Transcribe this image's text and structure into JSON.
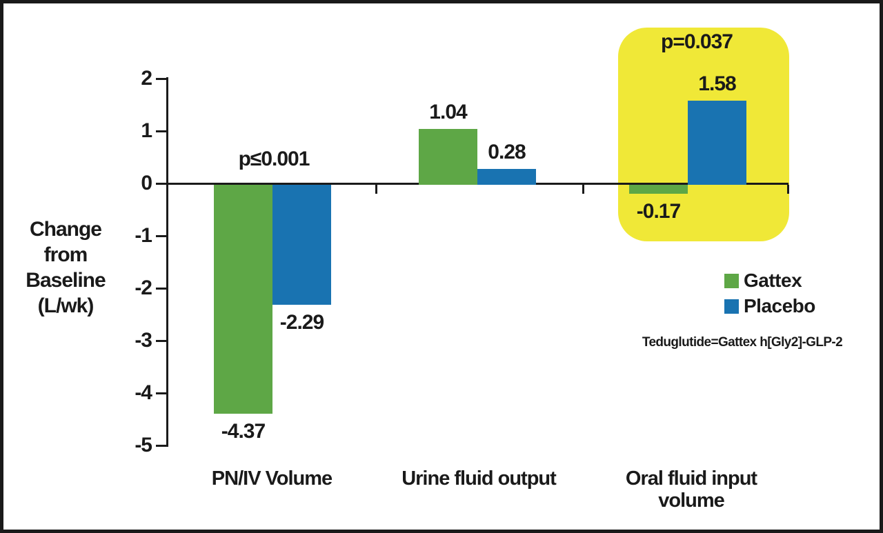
{
  "chart_data": {
    "type": "bar",
    "title": "",
    "categories": [
      "PN/IV Volume",
      "Urine fluid output",
      "Oral fluid input volume"
    ],
    "series": [
      {
        "name": "Gattex",
        "color": "#5EA746",
        "values": [
          -4.37,
          1.04,
          -0.17
        ],
        "value_labels": [
          "-4.37",
          "1.04",
          "-0.17"
        ]
      },
      {
        "name": "Placebo",
        "color": "#1973B1",
        "values": [
          -2.29,
          0.28,
          1.58
        ],
        "value_labels": [
          "-2.29",
          "0.28",
          "1.58"
        ]
      }
    ],
    "xlabel": "",
    "ylabel": "Change from Baseline (L/wk)",
    "ylabel_lines": [
      "Change",
      "from",
      "Baseline",
      "(L/wk)"
    ],
    "ylim": [
      -5,
      2
    ],
    "yticks": [
      2,
      1,
      0,
      -1,
      -2,
      -3,
      -4,
      -5
    ],
    "grid": false,
    "legend_position": "right",
    "annotations": [
      {
        "text": "p≤0.001",
        "category": "PN/IV Volume",
        "highlighted": false
      },
      {
        "text": "p=0.037",
        "category": "Oral fluid input volume",
        "highlighted": true
      }
    ],
    "highlight": {
      "category": "Oral fluid input volume",
      "color": "#F0E837"
    },
    "footnote": "Teduglutide=Gattex h[Gly2]-GLP-2",
    "colors": {
      "text": "#1a1a1a",
      "frame_border": "#1a1a1a",
      "background": "#ffffff"
    }
  }
}
